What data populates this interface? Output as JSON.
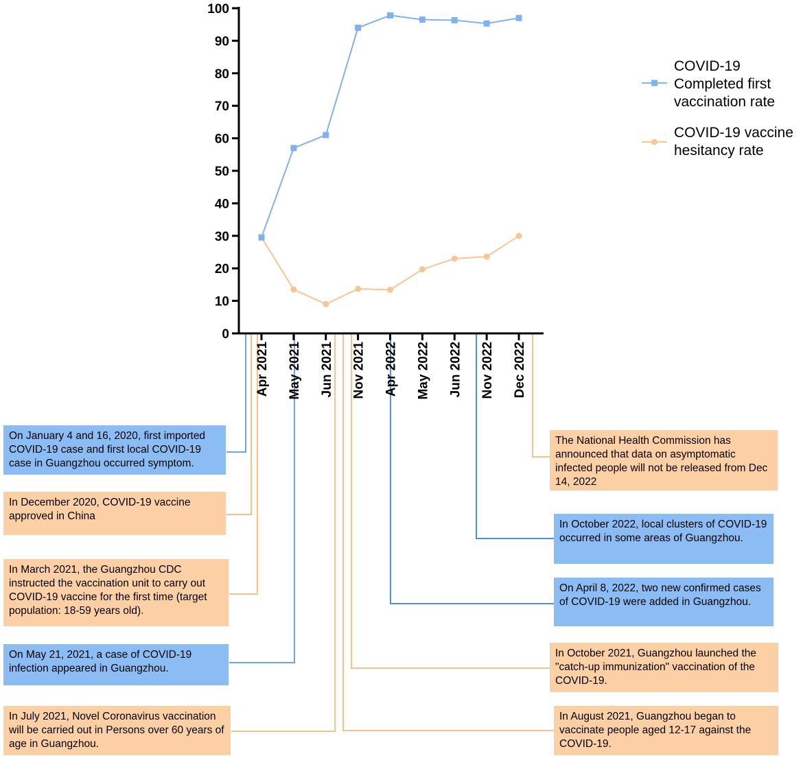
{
  "chart_data": {
    "type": "line",
    "categories": [
      "Apr 2021",
      "May 2021",
      "Jun 2021",
      "Nov 2021",
      "Apr 2022",
      "May 2022",
      "Jun 2022",
      "Nov 2022",
      "Dec 2022"
    ],
    "series": [
      {
        "name": "COVID-19\nCompleted first\nvaccination rate",
        "color": "#7fb2ee",
        "marker": "square",
        "values": [
          29.5,
          57,
          61,
          94,
          97.8,
          96.5,
          96.3,
          95.3,
          97
        ]
      },
      {
        "name": "COVID-19 vaccine\nhesitancy rate",
        "color": "#f9c692",
        "marker": "circle",
        "values": [
          29.5,
          13.5,
          9,
          13.7,
          13.4,
          19.7,
          23,
          23.6,
          30
        ]
      }
    ],
    "ylim": [
      0,
      100
    ],
    "yticks": [
      "0",
      "10",
      "20",
      "30",
      "40",
      "50",
      "60",
      "70",
      "80",
      "90",
      "100"
    ],
    "legend_position": "right"
  },
  "annotations": [
    {
      "id": "jan2020",
      "color": "blue",
      "text": "On January 4 and 16, 2020, first imported COVID-19 case and first local COVID-19 case in Guangzhou occurred symptom."
    },
    {
      "id": "dec2020",
      "color": "orange",
      "text": "In December 2020, COVID-19 vaccine approved in China"
    },
    {
      "id": "mar2021",
      "color": "orange",
      "text": "In March 2021, the Guangzhou CDC instructed the vaccination unit to carry out COVID-19 vaccine for the first time (target population: 18-59 years old)."
    },
    {
      "id": "may2021",
      "color": "blue",
      "text": "On May 21, 2021, a case of COVID-19 infection appeared in Guangzhou."
    },
    {
      "id": "jul2021",
      "color": "orange",
      "text": "In July 2021, Novel Coronavirus vaccination will be carried out in Persons over 60 years of age in Guangzhou."
    },
    {
      "id": "dec2022",
      "color": "orange",
      "text": "The National Health Commission has announced that data on asymptomatic infected people will not be released from Dec 14, 2022"
    },
    {
      "id": "oct2022",
      "color": "blue",
      "text": "In October 2022, local clusters of COVID-19 occurred in some areas of Guangzhou."
    },
    {
      "id": "apr2022",
      "color": "blue",
      "text": "On April 8, 2022, two new confirmed cases of COVID-19 were added in Guangzhou."
    },
    {
      "id": "oct2021",
      "color": "orange",
      "text": "In October 2021, Guangzhou launched the \"catch-up immunization\" vaccination of the COVID-19."
    },
    {
      "id": "aug2021",
      "color": "orange",
      "text": "In August 2021, Guangzhou began to vaccinate people aged 12-17 against the COVID-19."
    }
  ]
}
